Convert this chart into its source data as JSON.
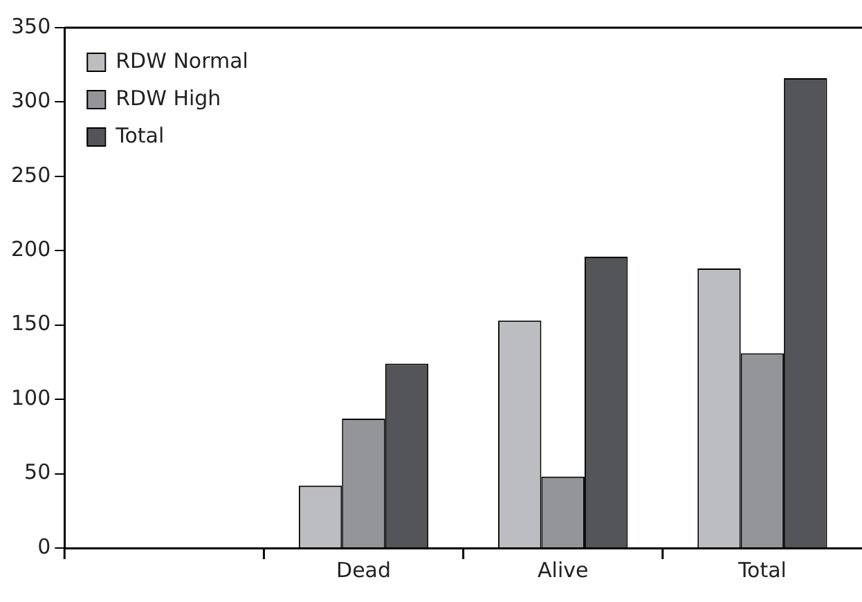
{
  "chart_data": {
    "type": "bar",
    "categories": [
      null,
      "Dead",
      "Alive",
      "Total"
    ],
    "series": [
      {
        "name": "RDW Normal",
        "color": "#bcbdc0",
        "values": [
          null,
          42,
          153,
          188
        ]
      },
      {
        "name": "RDW High",
        "color": "#949599",
        "values": [
          null,
          87,
          48,
          131
        ]
      },
      {
        "name": "Total",
        "color": "#545558",
        "values": [
          null,
          124,
          196,
          316
        ]
      }
    ],
    "ylim": [
      0,
      350
    ],
    "yticks": [
      0,
      50,
      100,
      150,
      200,
      250,
      300,
      350
    ],
    "grid": false,
    "legend": "top left"
  }
}
